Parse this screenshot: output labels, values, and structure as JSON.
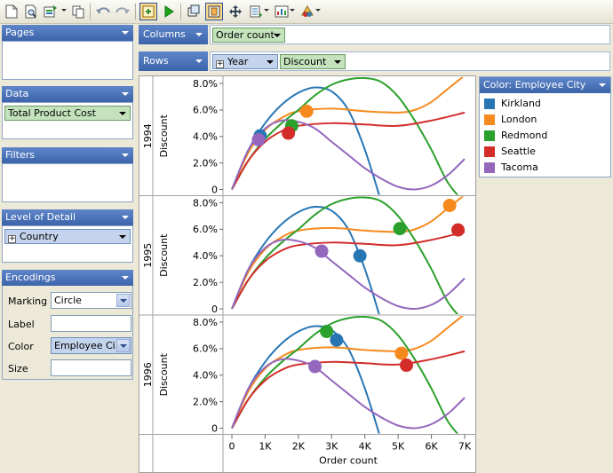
{
  "toolbar": {
    "buttons": [
      "new-document-icon",
      "print-preview-icon",
      "export-icon",
      "copy-icon",
      "undo-icon",
      "redo-icon",
      "import-data-icon",
      "run-icon",
      "swap-axes-icon",
      "fit-view-icon",
      "pan-icon",
      "sort-icon",
      "layout-icon",
      "palette-icon"
    ]
  },
  "panels": {
    "pages": {
      "title": "Pages"
    },
    "data": {
      "title": "Data",
      "pill": "Total Product Cost"
    },
    "filters": {
      "title": "Filters"
    },
    "level_of_detail": {
      "title": "Level of Detail",
      "pill": "Country"
    },
    "encodings": {
      "title": "Encodings",
      "marking_label": "Marking",
      "marking_value": "Circle",
      "label_label": "Label",
      "label_value": "",
      "color_label": "Color",
      "color_value": "Employee Ci...",
      "size_label": "Size",
      "size_value": ""
    }
  },
  "shelves": {
    "columns": {
      "title": "Columns",
      "pill": "Order count"
    },
    "rows": {
      "title": "Rows",
      "pill1": "Year",
      "pill2": "Discount"
    }
  },
  "legend": {
    "title": "Color: Employee City",
    "items": [
      {
        "label": "Kirkland",
        "color": "#2776b4"
      },
      {
        "label": "London",
        "color": "#f68a1e"
      },
      {
        "label": "Redmond",
        "color": "#2ca02c"
      },
      {
        "label": "Seattle",
        "color": "#d32d2a"
      },
      {
        "label": "Tacoma",
        "color": "#9467bd"
      }
    ]
  },
  "chart_data": {
    "type": "scatter",
    "xlabel": "Order count",
    "row_field": "Year",
    "ylabel": "Discount",
    "xlim": [
      0,
      7000
    ],
    "x_ticks": [
      {
        "value": 0,
        "label": "0"
      },
      {
        "value": 1000,
        "label": "1K"
      },
      {
        "value": 2000,
        "label": "2K"
      },
      {
        "value": 3000,
        "label": "3K"
      },
      {
        "value": 4000,
        "label": "4K"
      },
      {
        "value": 5000,
        "label": "5K"
      },
      {
        "value": 6000,
        "label": "6K"
      },
      {
        "value": 7000,
        "label": "7K"
      }
    ],
    "ylim": [
      0,
      0.08
    ],
    "y_ticks": [
      {
        "value": 0,
        "label": "0"
      },
      {
        "value": 0.02,
        "label": "2.0%"
      },
      {
        "value": 0.04,
        "label": "4.0%"
      },
      {
        "value": 0.06,
        "label": "6.0%"
      },
      {
        "value": 0.08,
        "label": "8.0%"
      }
    ],
    "panels": [
      {
        "year": "1994",
        "points": [
          {
            "city": "Kirkland",
            "x": 850,
            "y": 0.0405
          },
          {
            "city": "London",
            "x": 2250,
            "y": 0.059
          },
          {
            "city": "Redmond",
            "x": 1800,
            "y": 0.048
          },
          {
            "city": "Seattle",
            "x": 1700,
            "y": 0.0425
          },
          {
            "city": "Tacoma",
            "x": 800,
            "y": 0.0375
          }
        ]
      },
      {
        "year": "1995",
        "points": [
          {
            "city": "Kirkland",
            "x": 3850,
            "y": 0.04
          },
          {
            "city": "London",
            "x": 6550,
            "y": 0.078
          },
          {
            "city": "Redmond",
            "x": 5050,
            "y": 0.0605
          },
          {
            "city": "Seattle",
            "x": 6800,
            "y": 0.0595
          },
          {
            "city": "Tacoma",
            "x": 2700,
            "y": 0.0435
          }
        ]
      },
      {
        "year": "1996",
        "points": [
          {
            "city": "Kirkland",
            "x": 3150,
            "y": 0.0665
          },
          {
            "city": "London",
            "x": 5100,
            "y": 0.0565
          },
          {
            "city": "Redmond",
            "x": 2850,
            "y": 0.073
          },
          {
            "city": "Seattle",
            "x": 5250,
            "y": 0.0475
          },
          {
            "city": "Tacoma",
            "x": 2500,
            "y": 0.0465
          }
        ]
      }
    ],
    "trend_lines": [
      {
        "city": "Kirkland",
        "points": [
          [
            0,
            0
          ],
          [
            500,
            0.03
          ],
          [
            1000,
            0.05
          ],
          [
            1500,
            0.064
          ],
          [
            2000,
            0.073
          ],
          [
            2500,
            0.077
          ],
          [
            3000,
            0.074
          ],
          [
            3500,
            0.06
          ],
          [
            4000,
            0.03
          ],
          [
            4500,
            -0.01
          ]
        ]
      },
      {
        "city": "London",
        "points": [
          [
            0,
            0
          ],
          [
            500,
            0.028
          ],
          [
            1000,
            0.045
          ],
          [
            1500,
            0.054
          ],
          [
            2000,
            0.059
          ],
          [
            3000,
            0.061
          ],
          [
            4000,
            0.059
          ],
          [
            5000,
            0.058
          ],
          [
            5500,
            0.06
          ],
          [
            6000,
            0.066
          ],
          [
            6500,
            0.076
          ],
          [
            7000,
            0.086
          ]
        ]
      },
      {
        "city": "Redmond",
        "points": [
          [
            0,
            0
          ],
          [
            500,
            0.022
          ],
          [
            1000,
            0.038
          ],
          [
            1500,
            0.05
          ],
          [
            2000,
            0.06
          ],
          [
            2500,
            0.071
          ],
          [
            3000,
            0.079
          ],
          [
            3500,
            0.083
          ],
          [
            4000,
            0.084
          ],
          [
            4500,
            0.081
          ],
          [
            5000,
            0.07
          ],
          [
            5500,
            0.052
          ],
          [
            6000,
            0.03
          ],
          [
            6500,
            0.005
          ],
          [
            7000,
            -0.01
          ]
        ]
      },
      {
        "city": "Seattle",
        "points": [
          [
            0,
            0
          ],
          [
            500,
            0.022
          ],
          [
            1000,
            0.036
          ],
          [
            1500,
            0.044
          ],
          [
            2000,
            0.048
          ],
          [
            3000,
            0.05
          ],
          [
            4000,
            0.049
          ],
          [
            5000,
            0.048
          ],
          [
            6000,
            0.052
          ],
          [
            7000,
            0.058
          ]
        ]
      },
      {
        "city": "Tacoma",
        "points": [
          [
            0,
            0
          ],
          [
            500,
            0.03
          ],
          [
            1000,
            0.046
          ],
          [
            1500,
            0.052
          ],
          [
            2000,
            0.051
          ],
          [
            2500,
            0.046
          ],
          [
            3000,
            0.036
          ],
          [
            3500,
            0.026
          ],
          [
            4000,
            0.016
          ],
          [
            4500,
            0.008
          ],
          [
            5000,
            0.002
          ],
          [
            5500,
            0.0
          ],
          [
            6000,
            0.003
          ],
          [
            6500,
            0.011
          ],
          [
            7000,
            0.023
          ]
        ]
      }
    ]
  }
}
